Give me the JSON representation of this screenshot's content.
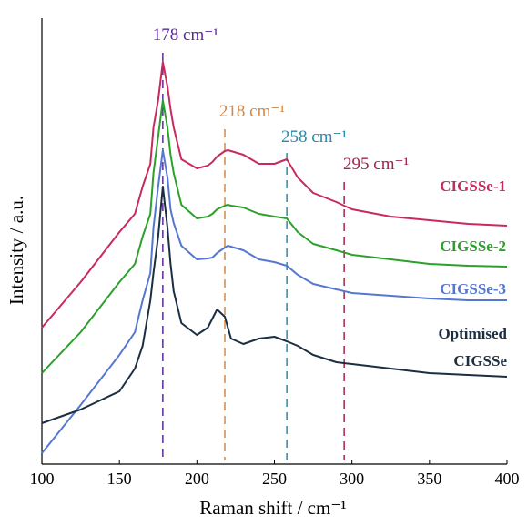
{
  "chart_data": {
    "type": "line",
    "x_label": "Raman shift / cm⁻¹",
    "y_label": "Intensity / a.u.",
    "x": [
      100,
      125,
      150,
      160,
      165,
      170,
      172,
      175,
      178,
      181,
      183,
      185,
      190,
      200,
      207,
      210,
      213,
      218,
      220,
      222,
      230,
      240,
      250,
      258,
      265,
      275,
      290,
      300,
      325,
      350,
      375,
      400
    ],
    "series": [
      {
        "name": "CIGSSe-1",
        "color": "#c72a5c",
        "values": [
          150,
          200,
          255,
          275,
          305,
          330,
          370,
          400,
          442,
          415,
          390,
          370,
          335,
          325,
          328,
          332,
          338,
          344,
          345,
          344,
          340,
          330,
          330,
          335,
          315,
          298,
          288,
          280,
          272,
          268,
          264,
          262
        ]
      },
      {
        "name": "CIGSSe-2",
        "color": "#2ca02c",
        "values": [
          100,
          145,
          200,
          220,
          250,
          275,
          320,
          360,
          400,
          370,
          340,
          320,
          285,
          270,
          272,
          275,
          280,
          284,
          285,
          284,
          282,
          275,
          272,
          270,
          255,
          242,
          235,
          230,
          225,
          220,
          218,
          217
        ]
      },
      {
        "name": "CIGSSe-3",
        "color": "#5577d0",
        "values": [
          12,
          65,
          120,
          145,
          180,
          210,
          260,
          305,
          345,
          315,
          280,
          265,
          240,
          225,
          226,
          227,
          232,
          238,
          240,
          239,
          235,
          225,
          222,
          218,
          208,
          198,
          192,
          188,
          185,
          182,
          180,
          180
        ]
      },
      {
        "name": "Optimised CIGSSe",
        "color": "#1c2e42",
        "values": [
          45,
          60,
          80,
          105,
          130,
          180,
          210,
          250,
          305,
          260,
          220,
          190,
          155,
          142,
          150,
          160,
          170,
          162,
          150,
          138,
          132,
          138,
          140,
          135,
          130,
          120,
          112,
          110,
          105,
          100,
          98,
          96
        ]
      }
    ],
    "annotations": [
      {
        "x": 178,
        "label": "178 cm⁻¹",
        "color": "#5b2a9a"
      },
      {
        "x": 218,
        "label": "218 cm⁻¹",
        "color": "#d08a4a"
      },
      {
        "x": 258,
        "label": "258 cm⁻¹",
        "color": "#2a8aa8"
      },
      {
        "x": 295,
        "label": "295 cm⁻¹",
        "color": "#a0234a"
      }
    ],
    "xlim": [
      100,
      400
    ],
    "xticks": [
      100,
      150,
      200,
      250,
      300,
      350,
      400
    ],
    "ylim": [
      0,
      480
    ]
  }
}
